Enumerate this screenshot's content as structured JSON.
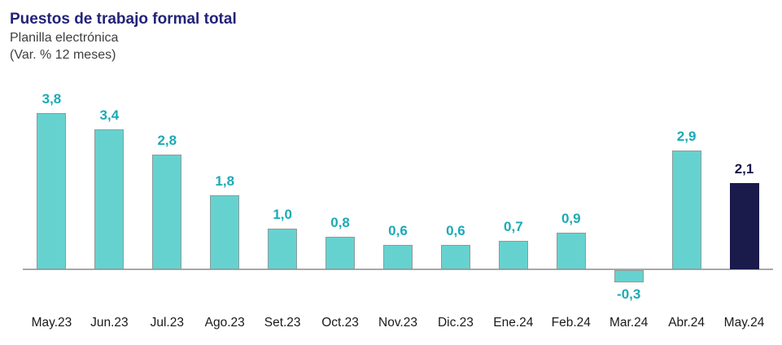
{
  "header": {
    "title": "Puestos de trabajo formal total",
    "subtitle_line1": "Planilla electrónica",
    "subtitle_line2": "(Var. % 12 meses)"
  },
  "chart_data": {
    "type": "bar",
    "title": "Puestos de trabajo formal total",
    "subtitle": "Planilla electrónica (Var. % 12 meses)",
    "categories": [
      "May.23",
      "Jun.23",
      "Jul.23",
      "Ago.23",
      "Set.23",
      "Oct.23",
      "Nov.23",
      "Dic.23",
      "Ene.24",
      "Feb.24",
      "Mar.24",
      "Abr.24",
      "May.24"
    ],
    "values": [
      3.8,
      3.4,
      2.8,
      1.8,
      1.0,
      0.8,
      0.6,
      0.6,
      0.7,
      0.9,
      -0.3,
      2.9,
      2.1
    ],
    "value_labels": [
      "3,8",
      "3,4",
      "2,8",
      "1,8",
      "1,0",
      "0,8",
      "0,6",
      "0,6",
      "0,7",
      "0,9",
      "-0,3",
      "2,9",
      "2,1"
    ],
    "highlight_index": 12,
    "xlabel": "",
    "ylabel": "Var. % 12 meses",
    "ylim": [
      -0.6,
      4.2
    ],
    "grid": false,
    "legend": "none",
    "colors": {
      "bar_default": "#66D2D0",
      "bar_border": "#8A9C9B",
      "bar_highlight": "#1A1A4B",
      "value_label_default": "#1BAAB5",
      "value_label_highlight": "#1A1A4B",
      "axis_line": "#A8A8A8",
      "tick_label": "#1A1A1A",
      "title": "#23237A",
      "subtitle": "#3F3F3F"
    }
  }
}
